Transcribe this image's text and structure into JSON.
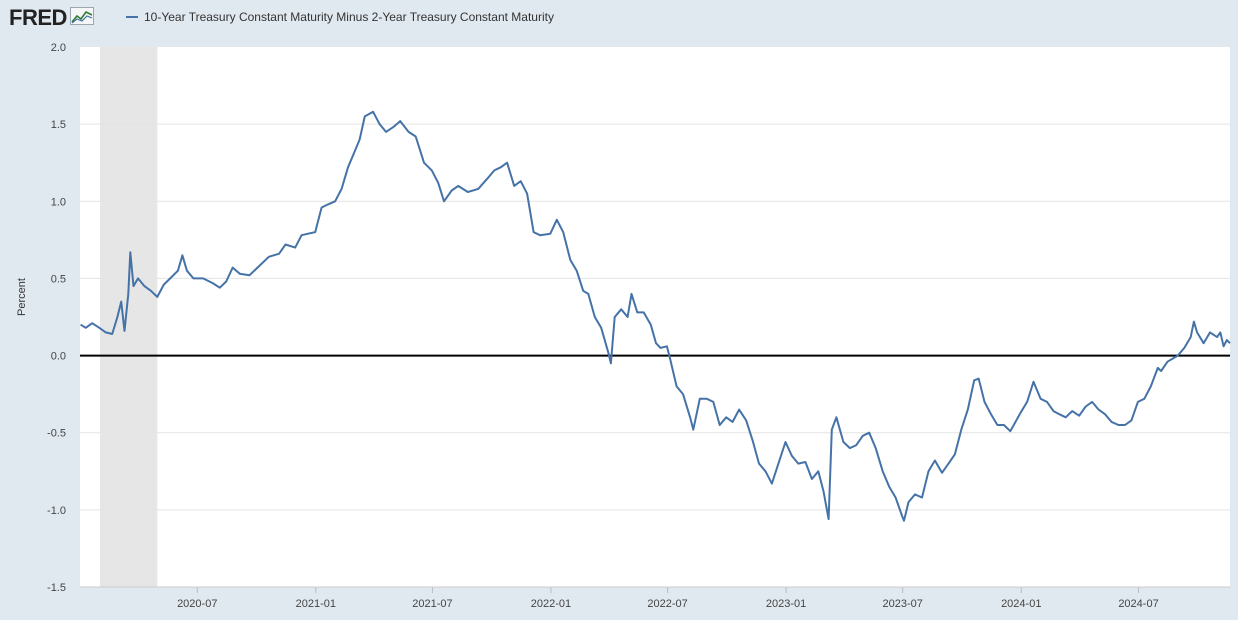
{
  "header": {
    "logo_text": "FRED",
    "logo_icon": "chart-line-icon"
  },
  "chart_data": {
    "type": "line",
    "title": "",
    "xlabel": "",
    "ylabel": "Percent",
    "ylim": [
      -1.5,
      2.0
    ],
    "yticks": [
      2.0,
      1.5,
      1.0,
      0.5,
      0.0,
      -0.5,
      -1.0,
      -1.5
    ],
    "ytick_labels": [
      "2.0",
      "1.5",
      "1.0",
      "0.5",
      "0.0",
      "-0.5",
      "-1.0",
      "-1.5"
    ],
    "xlim": [
      "2020-01-01",
      "2024-11-20"
    ],
    "xticks": [
      "2020-07",
      "2021-01",
      "2021-07",
      "2022-01",
      "2022-07",
      "2023-01",
      "2023-07",
      "2024-01",
      "2024-07"
    ],
    "grid": true,
    "legend_position": "top-left",
    "recession_shading": [
      {
        "start": "2020-02-01",
        "end": "2020-04-30"
      }
    ],
    "reference_line": 0,
    "series": [
      {
        "name": "10-Year Treasury Constant Maturity Minus 2-Year Treasury Constant Maturity",
        "color": "#4572a7",
        "points": [
          [
            "2020-01-02",
            0.2
          ],
          [
            "2020-01-10",
            0.18
          ],
          [
            "2020-01-20",
            0.21
          ],
          [
            "2020-01-31",
            0.18
          ],
          [
            "2020-02-10",
            0.15
          ],
          [
            "2020-02-20",
            0.14
          ],
          [
            "2020-02-28",
            0.25
          ],
          [
            "2020-03-05",
            0.35
          ],
          [
            "2020-03-10",
            0.16
          ],
          [
            "2020-03-16",
            0.4
          ],
          [
            "2020-03-19",
            0.67
          ],
          [
            "2020-03-24",
            0.45
          ],
          [
            "2020-03-31",
            0.5
          ],
          [
            "2020-04-10",
            0.45
          ],
          [
            "2020-04-20",
            0.42
          ],
          [
            "2020-04-30",
            0.38
          ],
          [
            "2020-05-10",
            0.46
          ],
          [
            "2020-05-20",
            0.5
          ],
          [
            "2020-06-01",
            0.55
          ],
          [
            "2020-06-08",
            0.65
          ],
          [
            "2020-06-15",
            0.55
          ],
          [
            "2020-06-25",
            0.5
          ],
          [
            "2020-07-10",
            0.5
          ],
          [
            "2020-07-25",
            0.47
          ],
          [
            "2020-08-05",
            0.44
          ],
          [
            "2020-08-15",
            0.48
          ],
          [
            "2020-08-25",
            0.57
          ],
          [
            "2020-09-05",
            0.53
          ],
          [
            "2020-09-20",
            0.52
          ],
          [
            "2020-10-05",
            0.58
          ],
          [
            "2020-10-20",
            0.64
          ],
          [
            "2020-11-05",
            0.66
          ],
          [
            "2020-11-15",
            0.72
          ],
          [
            "2020-11-30",
            0.7
          ],
          [
            "2020-12-10",
            0.78
          ],
          [
            "2020-12-20",
            0.79
          ],
          [
            "2020-12-31",
            0.8
          ],
          [
            "2021-01-10",
            0.96
          ],
          [
            "2021-01-20",
            0.98
          ],
          [
            "2021-01-31",
            1.0
          ],
          [
            "2021-02-10",
            1.08
          ],
          [
            "2021-02-20",
            1.22
          ],
          [
            "2021-02-28",
            1.3
          ],
          [
            "2021-03-10",
            1.4
          ],
          [
            "2021-03-18",
            1.55
          ],
          [
            "2021-03-31",
            1.58
          ],
          [
            "2021-04-10",
            1.5
          ],
          [
            "2021-04-20",
            1.45
          ],
          [
            "2021-05-01",
            1.48
          ],
          [
            "2021-05-12",
            1.52
          ],
          [
            "2021-05-25",
            1.45
          ],
          [
            "2021-06-05",
            1.42
          ],
          [
            "2021-06-18",
            1.25
          ],
          [
            "2021-06-30",
            1.2
          ],
          [
            "2021-07-10",
            1.12
          ],
          [
            "2021-07-19",
            1.0
          ],
          [
            "2021-07-31",
            1.07
          ],
          [
            "2021-08-10",
            1.1
          ],
          [
            "2021-08-25",
            1.06
          ],
          [
            "2021-09-10",
            1.08
          ],
          [
            "2021-09-25",
            1.15
          ],
          [
            "2021-10-05",
            1.2
          ],
          [
            "2021-10-15",
            1.22
          ],
          [
            "2021-10-25",
            1.25
          ],
          [
            "2021-11-05",
            1.1
          ],
          [
            "2021-11-15",
            1.13
          ],
          [
            "2021-11-25",
            1.05
          ],
          [
            "2021-12-05",
            0.8
          ],
          [
            "2021-12-15",
            0.78
          ],
          [
            "2021-12-31",
            0.79
          ],
          [
            "2022-01-10",
            0.88
          ],
          [
            "2022-01-20",
            0.8
          ],
          [
            "2022-01-31",
            0.62
          ],
          [
            "2022-02-10",
            0.55
          ],
          [
            "2022-02-20",
            0.42
          ],
          [
            "2022-02-28",
            0.4
          ],
          [
            "2022-03-10",
            0.25
          ],
          [
            "2022-03-20",
            0.18
          ],
          [
            "2022-03-31",
            0.02
          ],
          [
            "2022-04-04",
            -0.05
          ],
          [
            "2022-04-10",
            0.25
          ],
          [
            "2022-04-20",
            0.3
          ],
          [
            "2022-04-30",
            0.25
          ],
          [
            "2022-05-06",
            0.4
          ],
          [
            "2022-05-15",
            0.28
          ],
          [
            "2022-05-25",
            0.28
          ],
          [
            "2022-06-05",
            0.2
          ],
          [
            "2022-06-13",
            0.08
          ],
          [
            "2022-06-20",
            0.05
          ],
          [
            "2022-06-30",
            0.06
          ],
          [
            "2022-07-05",
            -0.02
          ],
          [
            "2022-07-15",
            -0.2
          ],
          [
            "2022-07-25",
            -0.25
          ],
          [
            "2022-08-05",
            -0.4
          ],
          [
            "2022-08-10",
            -0.48
          ],
          [
            "2022-08-20",
            -0.28
          ],
          [
            "2022-08-31",
            -0.28
          ],
          [
            "2022-09-10",
            -0.3
          ],
          [
            "2022-09-20",
            -0.45
          ],
          [
            "2022-09-30",
            -0.4
          ],
          [
            "2022-10-10",
            -0.43
          ],
          [
            "2022-10-20",
            -0.35
          ],
          [
            "2022-10-31",
            -0.42
          ],
          [
            "2022-11-10",
            -0.55
          ],
          [
            "2022-11-20",
            -0.7
          ],
          [
            "2022-11-30",
            -0.75
          ],
          [
            "2022-12-10",
            -0.83
          ],
          [
            "2022-12-20",
            -0.7
          ],
          [
            "2022-12-31",
            -0.56
          ],
          [
            "2023-01-10",
            -0.65
          ],
          [
            "2023-01-20",
            -0.7
          ],
          [
            "2023-01-31",
            -0.69
          ],
          [
            "2023-02-10",
            -0.8
          ],
          [
            "2023-02-20",
            -0.75
          ],
          [
            "2023-02-28",
            -0.88
          ],
          [
            "2023-03-08",
            -1.06
          ],
          [
            "2023-03-13",
            -0.48
          ],
          [
            "2023-03-20",
            -0.4
          ],
          [
            "2023-03-31",
            -0.56
          ],
          [
            "2023-04-10",
            -0.6
          ],
          [
            "2023-04-20",
            -0.58
          ],
          [
            "2023-04-30",
            -0.52
          ],
          [
            "2023-05-10",
            -0.5
          ],
          [
            "2023-05-20",
            -0.6
          ],
          [
            "2023-05-31",
            -0.75
          ],
          [
            "2023-06-10",
            -0.85
          ],
          [
            "2023-06-20",
            -0.92
          ],
          [
            "2023-06-30",
            -1.04
          ],
          [
            "2023-07-03",
            -1.07
          ],
          [
            "2023-07-10",
            -0.95
          ],
          [
            "2023-07-20",
            -0.9
          ],
          [
            "2023-07-31",
            -0.92
          ],
          [
            "2023-08-10",
            -0.75
          ],
          [
            "2023-08-20",
            -0.68
          ],
          [
            "2023-08-31",
            -0.76
          ],
          [
            "2023-09-10",
            -0.7
          ],
          [
            "2023-09-20",
            -0.64
          ],
          [
            "2023-09-30",
            -0.48
          ],
          [
            "2023-10-10",
            -0.35
          ],
          [
            "2023-10-20",
            -0.16
          ],
          [
            "2023-10-27",
            -0.15
          ],
          [
            "2023-11-05",
            -0.3
          ],
          [
            "2023-11-15",
            -0.38
          ],
          [
            "2023-11-25",
            -0.45
          ],
          [
            "2023-12-05",
            -0.45
          ],
          [
            "2023-12-15",
            -0.49
          ],
          [
            "2023-12-31",
            -0.37
          ],
          [
            "2024-01-10",
            -0.3
          ],
          [
            "2024-01-20",
            -0.17
          ],
          [
            "2024-01-31",
            -0.28
          ],
          [
            "2024-02-10",
            -0.3
          ],
          [
            "2024-02-20",
            -0.36
          ],
          [
            "2024-02-29",
            -0.38
          ],
          [
            "2024-03-10",
            -0.4
          ],
          [
            "2024-03-20",
            -0.36
          ],
          [
            "2024-03-31",
            -0.39
          ],
          [
            "2024-04-10",
            -0.33
          ],
          [
            "2024-04-20",
            -0.3
          ],
          [
            "2024-04-30",
            -0.35
          ],
          [
            "2024-05-10",
            -0.38
          ],
          [
            "2024-05-20",
            -0.43
          ],
          [
            "2024-05-31",
            -0.45
          ],
          [
            "2024-06-10",
            -0.45
          ],
          [
            "2024-06-20",
            -0.42
          ],
          [
            "2024-06-30",
            -0.3
          ],
          [
            "2024-07-10",
            -0.28
          ],
          [
            "2024-07-20",
            -0.2
          ],
          [
            "2024-07-31",
            -0.08
          ],
          [
            "2024-08-05",
            -0.1
          ],
          [
            "2024-08-15",
            -0.04
          ],
          [
            "2024-08-31",
            0.0
          ],
          [
            "2024-09-10",
            0.05
          ],
          [
            "2024-09-20",
            0.12
          ],
          [
            "2024-09-25",
            0.22
          ],
          [
            "2024-09-30",
            0.15
          ],
          [
            "2024-10-10",
            0.08
          ],
          [
            "2024-10-20",
            0.15
          ],
          [
            "2024-10-31",
            0.12
          ],
          [
            "2024-11-05",
            0.15
          ],
          [
            "2024-11-10",
            0.06
          ],
          [
            "2024-11-15",
            0.1
          ],
          [
            "2024-11-20",
            0.08
          ]
        ]
      }
    ]
  }
}
